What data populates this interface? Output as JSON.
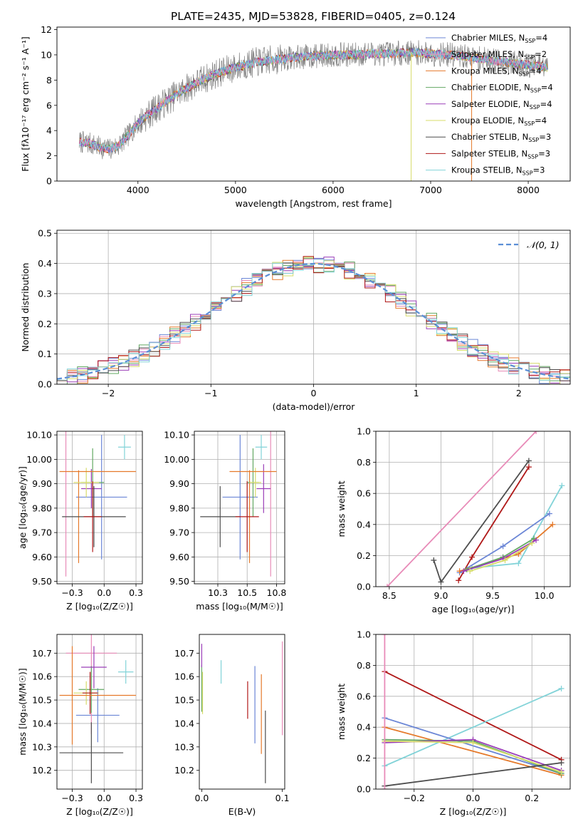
{
  "title": "PLATE=2435, MJD=53828, FIBERID=0405, z=0.124",
  "models": [
    {
      "name": "Chabrier MILES",
      "nssp": "4",
      "color": "#6b86d6"
    },
    {
      "name": "Salpeter MILES",
      "nssp": "2",
      "color": "#e88bb8"
    },
    {
      "name": "Kroupa MILES",
      "nssp": "4",
      "color": "#e57a2b"
    },
    {
      "name": "Chabrier ELODIE",
      "nssp": "4",
      "color": "#62a862"
    },
    {
      "name": "Salpeter ELODIE",
      "nssp": "4",
      "color": "#9a3db8"
    },
    {
      "name": "Kroupa ELODIE",
      "nssp": "4",
      "color": "#d7dc6a"
    },
    {
      "name": "Chabrier STELIB",
      "nssp": "3",
      "color": "#4d4d4d"
    },
    {
      "name": "Salpeter STELIB",
      "nssp": "3",
      "color": "#b01818"
    },
    {
      "name": "Kroupa STELIB",
      "nssp": "3",
      "color": "#82d3d8"
    }
  ],
  "chart_data": [
    {
      "id": "spectrum",
      "type": "line",
      "xlabel": "wavelength [Angstrom, rest frame]",
      "ylabel": "Flux [fλ10⁻¹⁷ erg cm⁻² s⁻¹ A⁻¹]",
      "xlim": [
        3170,
        8430
      ],
      "ylim": [
        0,
        12.2
      ],
      "xticks": [
        4000,
        5000,
        6000,
        7000,
        8000
      ],
      "yticks": [
        0,
        2,
        4,
        6,
        8,
        10,
        12
      ],
      "legend": "right",
      "data_line_color": "#808080",
      "continuum": {
        "x": [
          3400,
          3500,
          3600,
          3700,
          3800,
          3900,
          4000,
          4200,
          4400,
          4600,
          4800,
          5000,
          5200,
          5400,
          5600,
          5800,
          6000,
          6200,
          6400,
          6600,
          6800,
          7000,
          7200,
          7400,
          7600,
          7800,
          8000,
          8200
        ],
        "y": [
          3.1,
          3.0,
          2.7,
          2.5,
          2.8,
          3.6,
          4.6,
          5.8,
          6.9,
          7.8,
          8.5,
          9.0,
          9.4,
          9.6,
          9.8,
          9.9,
          10.0,
          10.0,
          10.1,
          10.1,
          10.2,
          10.1,
          10.0,
          9.8,
          9.6,
          9.4,
          9.2,
          9.0
        ]
      }
    },
    {
      "id": "residuals",
      "type": "step",
      "xlabel": "(data-model)/error",
      "ylabel": "Normed distribution",
      "xlim": [
        -2.5,
        2.5
      ],
      "ylim": [
        0,
        0.51
      ],
      "xticks": [
        -2,
        -1,
        0,
        1,
        2
      ],
      "yticks": [
        0.0,
        0.1,
        0.2,
        0.3,
        0.4,
        0.5
      ],
      "grid": true,
      "legend": "top-right",
      "normal_label": "𝒩(0, 1)",
      "normal_color": "#5b8fd6"
    },
    {
      "id": "Z-age",
      "type": "errorbar",
      "xlabel": "Z [log₁₀(Z/Z☉)]",
      "ylabel": "age  [log₁₀(age/yr)]",
      "xlim": [
        -0.37,
        0.3
      ],
      "ylim": [
        9.49,
        10.115
      ],
      "xticks": [
        -0.25,
        0.0,
        0.25
      ],
      "yticks": [
        9.5,
        9.6,
        9.7,
        9.8,
        9.9,
        10.0,
        10.1
      ],
      "grid": true,
      "points": [
        {
          "m": 0,
          "x": -0.02,
          "xerr": 0.2,
          "y": 9.845,
          "yerr": 0.255
        },
        {
          "m": 1,
          "x": -0.3,
          "xerr": 0.0,
          "y": 9.95,
          "yerr": 0.43
        },
        {
          "m": 2,
          "x": -0.2,
          "xerr": 0.0,
          "y": 9.765,
          "yerr": 0.19
        },
        {
          "m": 3,
          "x": -0.09,
          "xerr": 0.09,
          "y": 9.905,
          "yerr": 0.14
        },
        {
          "m": 4,
          "x": -0.1,
          "xerr": 0.08,
          "y": 9.88,
          "yerr": 0.08
        },
        {
          "m": 5,
          "x": -0.14,
          "xerr": 0.1,
          "y": 9.905,
          "yerr": 0.06
        },
        {
          "m": 6,
          "x": -0.08,
          "xerr": 0.25,
          "y": 9.765,
          "yerr": 0.125
        },
        {
          "m": 7,
          "x": -0.09,
          "xerr": 0.07,
          "y": 9.765,
          "yerr": 0.145
        },
        {
          "m": 8,
          "x": 0.16,
          "xerr": 0.05,
          "y": 10.05,
          "yerr": 0.05
        },
        {
          "m": 2,
          "x": -0.05,
          "xerr": 0.3,
          "y": 9.95,
          "yerr": 0.0
        }
      ]
    },
    {
      "id": "mass-age",
      "type": "errorbar",
      "xlabel": "mass [log₁₀(M/M☉)]",
      "ylabel": "",
      "xlim": [
        10.05,
        10.82
      ],
      "ylim": [
        9.49,
        10.115
      ],
      "xticks": [
        10.25,
        10.5,
        10.75
      ],
      "yticks": [
        9.5,
        9.6,
        9.7,
        9.8,
        9.9,
        10.0,
        10.1
      ],
      "grid": true,
      "points": [
        {
          "m": 0,
          "x": 10.44,
          "xerr": 0.15,
          "y": 9.845,
          "yerr": 0.255
        },
        {
          "m": 1,
          "x": 10.7,
          "xerr": 0.0,
          "y": 9.95,
          "yerr": 0.43
        },
        {
          "m": 2,
          "x": 10.52,
          "xerr": 0.0,
          "y": 9.765,
          "yerr": 0.19
        },
        {
          "m": 3,
          "x": 10.55,
          "xerr": 0.05,
          "y": 9.905,
          "yerr": 0.14
        },
        {
          "m": 4,
          "x": 10.64,
          "xerr": 0.06,
          "y": 9.88,
          "yerr": 0.1
        },
        {
          "m": 5,
          "x": 10.57,
          "xerr": 0.05,
          "y": 9.905,
          "yerr": 0.06
        },
        {
          "m": 6,
          "x": 10.27,
          "xerr": 0.17,
          "y": 9.765,
          "yerr": 0.125
        },
        {
          "m": 7,
          "x": 10.5,
          "xerr": 0.1,
          "y": 9.765,
          "yerr": 0.145
        },
        {
          "m": 8,
          "x": 10.62,
          "xerr": 0.05,
          "y": 10.05,
          "yerr": 0.05
        },
        {
          "m": 2,
          "x": 10.55,
          "xerr": 0.2,
          "y": 9.95,
          "yerr": 0.0
        }
      ]
    },
    {
      "id": "age-weight",
      "type": "line",
      "xlabel": "age  [log₁₀(age/yr)]",
      "ylabel": "mass weight",
      "xlim": [
        8.37,
        10.25
      ],
      "ylim": [
        0,
        1.0
      ],
      "xticks": [
        8.5,
        9.0,
        9.5,
        10.0
      ],
      "yticks": [
        0.0,
        0.2,
        0.4,
        0.6,
        0.8,
        1.0
      ],
      "grid": true,
      "series": [
        {
          "m": 1,
          "x": [
            8.48,
            9.92
          ],
          "y": [
            0.0,
            1.0
          ]
        },
        {
          "m": 6,
          "x": [
            8.93,
            9.0,
            9.85
          ],
          "y": [
            0.17,
            0.03,
            0.81
          ]
        },
        {
          "m": 7,
          "x": [
            9.17,
            9.3,
            9.85
          ],
          "y": [
            0.04,
            0.19,
            0.77
          ]
        },
        {
          "m": 8,
          "x": [
            9.3,
            9.75,
            10.17
          ],
          "y": [
            0.12,
            0.15,
            0.65
          ]
        },
        {
          "m": 0,
          "x": [
            9.18,
            9.6,
            10.05
          ],
          "y": [
            0.09,
            0.26,
            0.47
          ]
        },
        {
          "m": 2,
          "x": [
            9.18,
            9.75,
            10.08
          ],
          "y": [
            0.1,
            0.21,
            0.4
          ]
        },
        {
          "m": 3,
          "x": [
            9.25,
            9.6,
            9.9
          ],
          "y": [
            0.11,
            0.19,
            0.31
          ]
        },
        {
          "m": 4,
          "x": [
            9.22,
            9.6,
            9.92
          ],
          "y": [
            0.1,
            0.18,
            0.3
          ]
        },
        {
          "m": 5,
          "x": [
            9.28,
            9.62,
            9.88
          ],
          "y": [
            0.1,
            0.17,
            0.28
          ]
        }
      ]
    },
    {
      "id": "Z-mass",
      "type": "errorbar",
      "xlabel": "Z [log₁₀(Z/Z☉)]",
      "ylabel": "mass [log₁₀(M/M☉)]",
      "xlim": [
        -0.37,
        0.3
      ],
      "ylim": [
        10.12,
        10.78
      ],
      "xticks": [
        -0.25,
        0.0,
        0.25
      ],
      "yticks": [
        10.2,
        10.3,
        10.4,
        10.5,
        10.6,
        10.7
      ],
      "grid": true,
      "points": [
        {
          "m": 0,
          "x": -0.05,
          "xerr": 0.17,
          "y": 10.435,
          "yerr": 0.115
        },
        {
          "m": 1,
          "x": -0.1,
          "xerr": 0.2,
          "y": 10.7,
          "yerr": 0.345
        },
        {
          "m": 2,
          "x": -0.25,
          "xerr": 0.0,
          "y": 10.52,
          "yerr": 0.21
        },
        {
          "m": 3,
          "x": -0.1,
          "xerr": 0.1,
          "y": 10.545,
          "yerr": 0.1
        },
        {
          "m": 4,
          "x": -0.08,
          "xerr": 0.1,
          "y": 10.64,
          "yerr": 0.09
        },
        {
          "m": 5,
          "x": -0.14,
          "xerr": 0.1,
          "y": 10.53,
          "yerr": 0.05
        },
        {
          "m": 6,
          "x": -0.1,
          "xerr": 0.25,
          "y": 10.275,
          "yerr": 0.13
        },
        {
          "m": 7,
          "x": -0.11,
          "xerr": 0.06,
          "y": 10.53,
          "yerr": 0.09
        },
        {
          "m": 8,
          "x": 0.17,
          "xerr": 0.06,
          "y": 10.62,
          "yerr": 0.05
        },
        {
          "m": 2,
          "x": -0.05,
          "xerr": 0.3,
          "y": 10.52,
          "yerr": 0.0
        }
      ]
    },
    {
      "id": "ebv-mass",
      "type": "errorbar",
      "xlabel": "E(B-V)",
      "ylabel": "",
      "xlim": [
        -0.003,
        0.103
      ],
      "ylim": [
        10.12,
        10.78
      ],
      "xticks": [
        0.0,
        0.1
      ],
      "yticks": [
        10.2,
        10.3,
        10.4,
        10.5,
        10.6,
        10.7
      ],
      "grid": false,
      "points": [
        {
          "m": 0,
          "x": 0.066,
          "xerr": 0.0,
          "y": 10.48,
          "yerr": 0.165
        },
        {
          "m": 1,
          "x": 0.1,
          "xerr": 0.0,
          "y": 10.55,
          "yerr": 0.2
        },
        {
          "m": 2,
          "x": 0.074,
          "xerr": 0.0,
          "y": 10.44,
          "yerr": 0.17
        },
        {
          "m": 3,
          "x": 0.0,
          "xerr": 0.0,
          "y": 10.55,
          "yerr": 0.1
        },
        {
          "m": 4,
          "x": 0.0,
          "xerr": 0.0,
          "y": 10.69,
          "yerr": 0.05
        },
        {
          "m": 5,
          "x": 0.001,
          "xerr": 0.0,
          "y": 10.53,
          "yerr": 0.09
        },
        {
          "m": 6,
          "x": 0.079,
          "xerr": 0.0,
          "y": 10.3,
          "yerr": 0.155
        },
        {
          "m": 7,
          "x": 0.057,
          "xerr": 0.0,
          "y": 10.5,
          "yerr": 0.08
        },
        {
          "m": 8,
          "x": 0.024,
          "xerr": 0.0,
          "y": 10.62,
          "yerr": 0.05
        }
      ]
    },
    {
      "id": "Z-weight",
      "type": "line",
      "xlabel": "Z [log₁₀(Z/Z☉)]",
      "ylabel": "mass weight",
      "xlim": [
        -0.33,
        0.33
      ],
      "ylim": [
        0,
        1.0
      ],
      "xticks": [
        -0.2,
        0.0,
        0.2
      ],
      "yticks": [
        0.0,
        0.2,
        0.4,
        0.6,
        0.8,
        1.0
      ],
      "grid": true,
      "series": [
        {
          "m": 7,
          "x": [
            -0.3,
            0.3
          ],
          "y": [
            0.76,
            0.19
          ]
        },
        {
          "m": 8,
          "x": [
            -0.3,
            0.3
          ],
          "y": [
            0.15,
            0.65
          ]
        },
        {
          "m": 0,
          "x": [
            -0.3,
            0.3
          ],
          "y": [
            0.46,
            0.1
          ]
        },
        {
          "m": 2,
          "x": [
            -0.3,
            0.3
          ],
          "y": [
            0.4,
            0.09
          ]
        },
        {
          "m": 3,
          "x": [
            -0.3,
            0.0,
            0.3
          ],
          "y": [
            0.32,
            0.31,
            0.1
          ]
        },
        {
          "m": 4,
          "x": [
            -0.3,
            0.0,
            0.3
          ],
          "y": [
            0.3,
            0.32,
            0.12
          ]
        },
        {
          "m": 5,
          "x": [
            -0.3,
            0.0,
            0.3
          ],
          "y": [
            0.31,
            0.3,
            0.11
          ]
        },
        {
          "m": 6,
          "x": [
            -0.3,
            0.3
          ],
          "y": [
            0.02,
            0.17
          ]
        },
        {
          "m": 1,
          "x": [
            -0.3,
            -0.3
          ],
          "y": [
            0.0,
            1.0
          ]
        }
      ]
    }
  ]
}
